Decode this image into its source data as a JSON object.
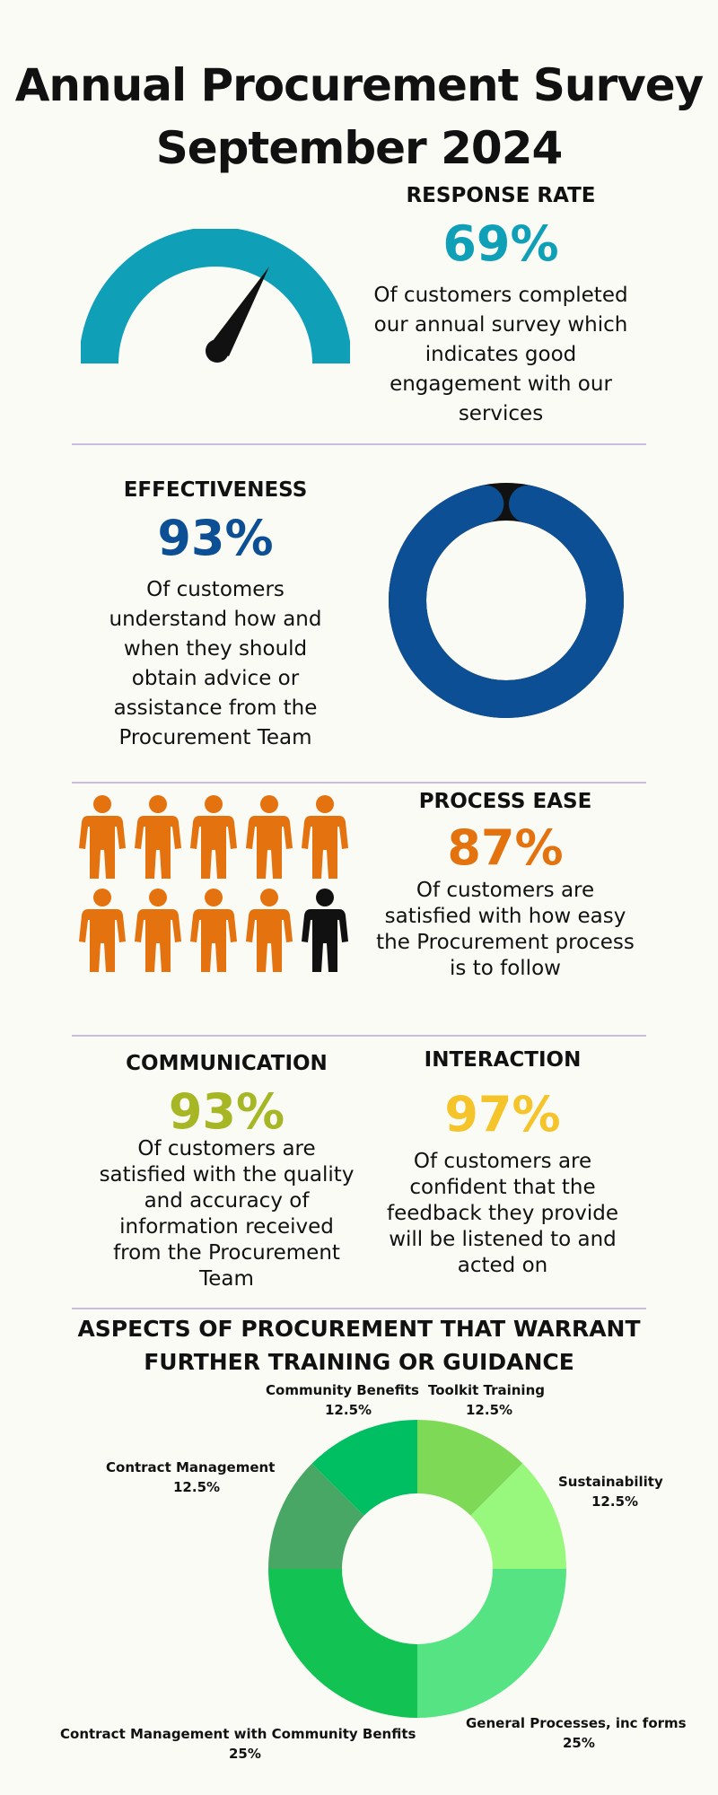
{
  "title": {
    "line1": "Annual Procurement Survey",
    "line2": "September 2024"
  },
  "response_rate": {
    "heading": "RESPONSE RATE",
    "percent": "69%",
    "value": 69,
    "color": "#0fa0b8",
    "needle_color": "#111111",
    "description": "Of customers completed our annual survey which indicates good engagement with our services",
    "gauge_icon": "speedometer-gauge-icon"
  },
  "effectiveness": {
    "heading": "EFFECTIVENESS",
    "percent": "93%",
    "value": 93,
    "color": "#0d4f94",
    "remainder_color": "#111111",
    "description": "Of customers understand how and when they should obtain advice or assistance from the Procurement Team"
  },
  "process_ease": {
    "heading": "PROCESS EASE",
    "percent": "87%",
    "value": 87,
    "color": "#e3720f",
    "other_color": "#111111",
    "people_total": 10,
    "people_highlighted": 9,
    "person_icon": "person-icon",
    "description": "Of customers are satisfied with how easy the Procurement process is to follow"
  },
  "communication": {
    "heading": "COMMUNICATION",
    "percent": "93%",
    "value": 93,
    "color": "#a6b624",
    "description": "Of customers are satisfied with the quality and accuracy of information received from the Procurement Team"
  },
  "interaction": {
    "heading": "INTERACTION",
    "percent": "97%",
    "value": 97,
    "color": "#f5c42b",
    "description": "Of customers are confident that the feedback they provide will be listened to and acted on"
  },
  "training": {
    "heading_line1": "ASPECTS OF PROCUREMENT THAT WARRANT",
    "heading_line2": "FURTHER TRAINING OR GUIDANCE"
  },
  "chart_data": {
    "type": "pie",
    "donut": true,
    "slices": [
      {
        "label": "Toolkit Training",
        "percent": "12.5%",
        "value": 12.5,
        "color": "#7ed957"
      },
      {
        "label": "Sustainability",
        "percent": "12.5%",
        "value": 12.5,
        "color": "#98f87d"
      },
      {
        "label": "General Processes, inc forms",
        "percent": "25%",
        "value": 25,
        "color": "#55e383"
      },
      {
        "label": "Contract Management with Community Benfits",
        "percent": "25%",
        "value": 25,
        "color": "#12c354"
      },
      {
        "label": "Contract Management",
        "percent": "12.5%",
        "value": 12.5,
        "color": "#49a765"
      },
      {
        "label": "Community Benefits",
        "percent": "12.5%",
        "value": 12.5,
        "color": "#00bf63"
      }
    ]
  }
}
